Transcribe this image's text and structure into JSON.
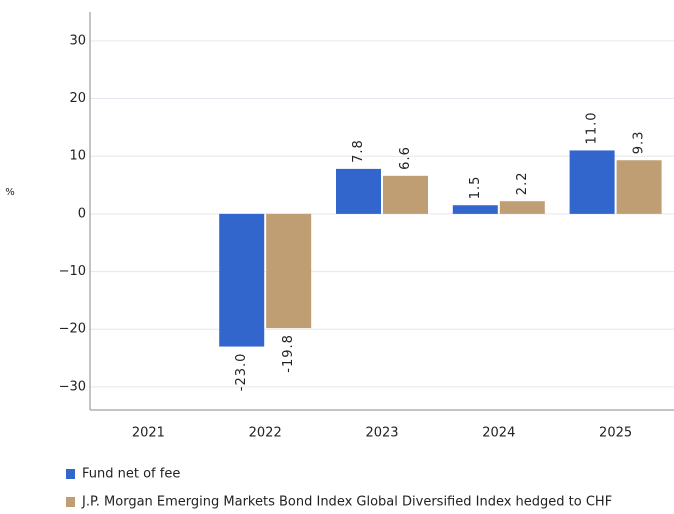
{
  "chart_data": {
    "type": "bar",
    "y_label": "%",
    "categories": [
      "2021",
      "2022",
      "2023",
      "2024",
      "2025"
    ],
    "series": [
      {
        "name": "Fund net of fee",
        "color": "#3366cc",
        "values": [
          null,
          -23.0,
          7.8,
          1.5,
          11.0
        ],
        "value_labels": [
          null,
          "-23.0",
          "7.8",
          "1.5",
          "11.0"
        ]
      },
      {
        "name": "J.P. Morgan Emerging Markets Bond Index Global Diversified Index hedged to CHF",
        "color": "#bf9e73",
        "values": [
          null,
          -19.8,
          6.6,
          2.2,
          9.3
        ],
        "value_labels": [
          null,
          "-19.8",
          "6.6",
          "2.2",
          "9.3"
        ]
      }
    ],
    "ylim": [
      -34,
      35
    ],
    "yticks": [
      {
        "value": -30,
        "label": "−30"
      },
      {
        "value": -20,
        "label": "−20"
      },
      {
        "value": -10,
        "label": "−10"
      },
      0,
      10,
      20,
      30
    ],
    "grid": true
  }
}
